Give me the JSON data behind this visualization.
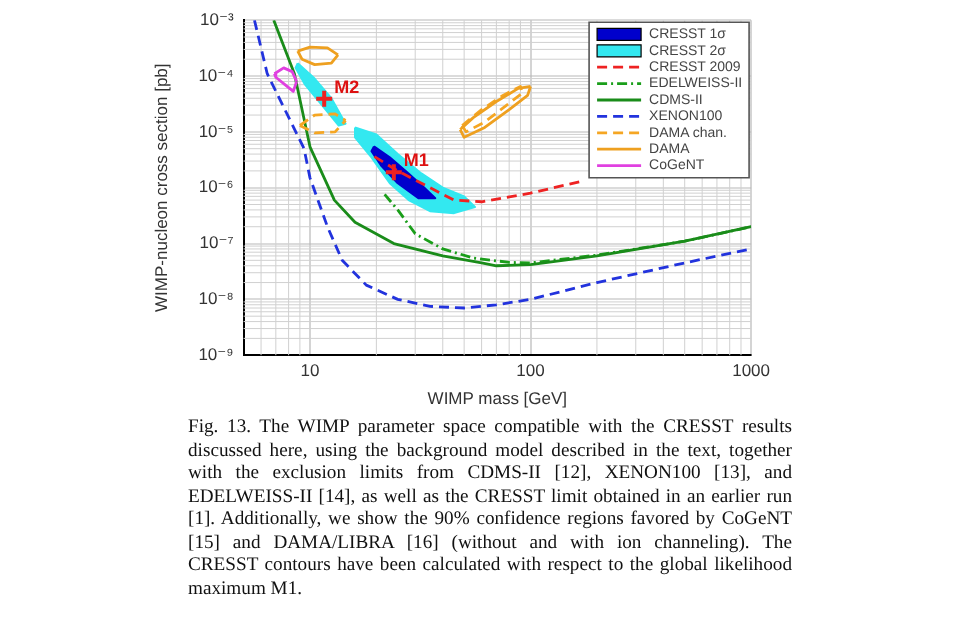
{
  "chart_data": {
    "type": "line",
    "xlabel": "WIMP mass [GeV]",
    "ylabel": "WIMP-nucleon cross section [pb]",
    "log": "xy",
    "xlim": [
      5,
      1000
    ],
    "xticks": [
      10,
      100,
      1000
    ],
    "ylim": [
      1e-09,
      0.001
    ],
    "yticks": [
      {
        "value": 1e-09,
        "label": "10⁻⁹"
      },
      {
        "value": 1e-08,
        "label": "10⁻⁸"
      },
      {
        "value": 1e-07,
        "label": "10⁻⁷"
      },
      {
        "value": 1e-06,
        "label": "10⁻⁶"
      },
      {
        "value": 1e-05,
        "label": "10⁻⁵"
      },
      {
        "value": 0.0001,
        "label": "10⁻⁴"
      },
      {
        "value": 0.001,
        "label": "10⁻³"
      }
    ],
    "grid": true,
    "legend": "top right",
    "series": [
      {
        "name": "CRESST 1σ",
        "type": "area",
        "color": "#0000cc",
        "x": [
          19.5,
          23,
          28,
          33,
          37,
          31,
          25,
          21,
          19,
          19.5
        ],
        "values": [
          5.5e-06,
          3.5e-06,
          1.8e-06,
          1e-06,
          6.5e-07,
          6.5e-07,
          1.2e-06,
          2.5e-06,
          4.5e-06,
          5.5e-06
        ]
      },
      {
        "name": "CRESST 2σ",
        "type": "area",
        "color": "#33e8f0",
        "x": [
          16,
          20,
          25,
          32,
          40,
          50,
          56,
          45,
          35,
          28,
          23,
          19,
          16,
          16
        ],
        "values": [
          1.2e-05,
          9e-06,
          4e-06,
          1.8e-06,
          1e-06,
          7e-07,
          4.5e-07,
          3.5e-07,
          3.8e-07,
          6e-07,
          1.2e-06,
          3.5e-06,
          8e-06,
          1.2e-05
        ]
      },
      {
        "name": "CRESST 2009",
        "line_style": "dashed",
        "color": "#ee2222",
        "x": [
          19.6,
          25,
          35,
          45,
          60,
          100,
          170
        ],
        "values": [
          3.6e-06,
          2e-06,
          1e-06,
          6e-07,
          5.6e-07,
          8e-07,
          1.3e-06
        ]
      },
      {
        "name": "EDELWEISS-II",
        "line_style": "dotted",
        "color": "#1a9e1a",
        "x": [
          21.8,
          25,
          30,
          40,
          55,
          80,
          100,
          200,
          500,
          1000
        ],
        "values": [
          7.6e-07,
          4e-07,
          1.5e-07,
          8e-08,
          5.5e-08,
          4.6e-08,
          4.5e-08,
          6.2e-08,
          1.1e-07,
          2e-07
        ]
      },
      {
        "name": "CDMS-II",
        "line_style": "solid",
        "color": "#1a8c1a",
        "x": [
          6.85,
          8.5,
          10,
          12.9,
          16,
          24,
          40,
          60,
          70,
          100,
          200,
          500,
          1000
        ],
        "values": [
          0.001,
          0.00011,
          5.4e-06,
          6e-07,
          2.4e-07,
          1e-07,
          6e-08,
          4.5e-08,
          4e-08,
          4.2e-08,
          6e-08,
          1.1e-07,
          2e-07
        ]
      },
      {
        "name": "XENON100",
        "line_style": "dashed",
        "color": "#2233dd",
        "x": [
          5.6,
          6.4,
          9.4,
          10,
          12,
          14,
          18,
          25,
          35,
          50,
          70,
          100,
          200,
          500,
          1000
        ],
        "values": [
          0.001,
          0.00011,
          5e-06,
          1.5e-06,
          2e-07,
          5e-08,
          1.8e-08,
          1e-08,
          7.5e-09,
          7e-09,
          8e-09,
          1e-08,
          2e-08,
          4.5e-08,
          8e-08
        ]
      },
      {
        "name": "DAMA chan.",
        "line_style": "dashed",
        "color": "#f5a623",
        "x": [
          9,
          10.5,
          13,
          14.5
        ],
        "values": [
          1.3e-05,
          2e-05,
          2.1e-05,
          1.6e-05
        ]
      },
      {
        "name": "DAMA",
        "line_style": "solid",
        "color": "#eea020",
        "x": [
          8.8,
          10,
          12,
          13.4
        ],
        "values": [
          0.00028,
          0.00033,
          0.00032,
          0.00024
        ]
      },
      {
        "name": "CoGeNT",
        "line_style": "solid",
        "color": "#e040e0",
        "x": [
          6.9,
          7.6,
          8.3,
          8.7
        ],
        "values": [
          0.00011,
          0.00014,
          0.00012,
          8e-05
        ]
      },
      {
        "line_style": "solid",
        "color": "#e040e0",
        "x": [
          6.9,
          7,
          7.7,
          8.4,
          8.7
        ],
        "values": [
          0.00011,
          9.5e-05,
          7e-05,
          5.3e-05,
          8e-05
        ]
      },
      {
        "line_style": "dashed",
        "color": "#f5a623",
        "x": [
          9,
          10.5,
          13,
          14.5
        ],
        "values": [
          1.3e-05,
          9.6e-06,
          1e-05,
          1.6e-05
        ]
      },
      {
        "line_style": "solid",
        "color": "#eea020",
        "x": [
          8.8,
          9.2,
          10.5,
          12.5,
          13.4
        ],
        "values": [
          0.00028,
          0.0002,
          0.00016,
          0.00017,
          0.00024
        ]
      },
      {
        "type": "area",
        "color": "#33e8f0",
        "x": [
          8.8,
          10.5,
          12.5,
          14.5,
          13.5,
          11.5,
          9.5,
          8.6,
          8.8
        ],
        "values": [
          0.00017,
          9e-05,
          4e-05,
          1.4e-05,
          1.3e-05,
          2.8e-05,
          7e-05,
          0.00014,
          0.00017
        ]
      },
      {
        "line_style": "dashed",
        "color": "#f5a623",
        "x": [
          49,
          60,
          75,
          90,
          92
        ],
        "values": [
          1.3e-05,
          2.5e-05,
          4.5e-05,
          6.5e-05,
          5e-05
        ]
      },
      {
        "line_style": "dashed",
        "color": "#f5a623",
        "x": [
          49,
          51,
          62,
          78,
          92
        ],
        "values": [
          1.3e-05,
          1e-05,
          1.5e-05,
          3e-05,
          5e-05
        ]
      },
      {
        "line_style": "solid",
        "color": "#eea020",
        "x": [
          48,
          55,
          70,
          88,
          100
        ],
        "values": [
          1.1e-05,
          1.8e-05,
          3.5e-05,
          6e-05,
          6.5e-05
        ]
      },
      {
        "line_style": "solid",
        "color": "#eea020",
        "x": [
          48,
          50,
          62,
          80,
          97,
          100
        ],
        "values": [
          1.1e-05,
          8e-06,
          1.2e-05,
          2.5e-05,
          4.5e-05,
          6.5e-05
        ]
      },
      {
        "type": "scatter",
        "marker": "cross",
        "color": "#ee2222",
        "x": [
          11.6,
          24
        ],
        "values": [
          3.9e-05,
          1.9e-06
        ]
      }
    ],
    "annotations": [
      {
        "text": "M1",
        "x": 24,
        "y": 1.9e-06
      },
      {
        "text": "M2",
        "x": 11.6,
        "y": 3.9e-05
      },
      "Fig. 13. The WIMP parameter space compatible with the CRESST results discussed here, using the background model described in the text, together with the exclusion limits from CDMS-II [12], XENON100 [13], and EDELWEISS-II [14], as well as the CRESST limit obtained in an earlier run [1]. Additionally, we show the 90% confidence regions favored by CoGeNT [15] and DAMA/LIBRA [16] (without and with ion channeling). The CRESST contours have been calculated with respect to the global likelihood maximum M1."
    ]
  }
}
